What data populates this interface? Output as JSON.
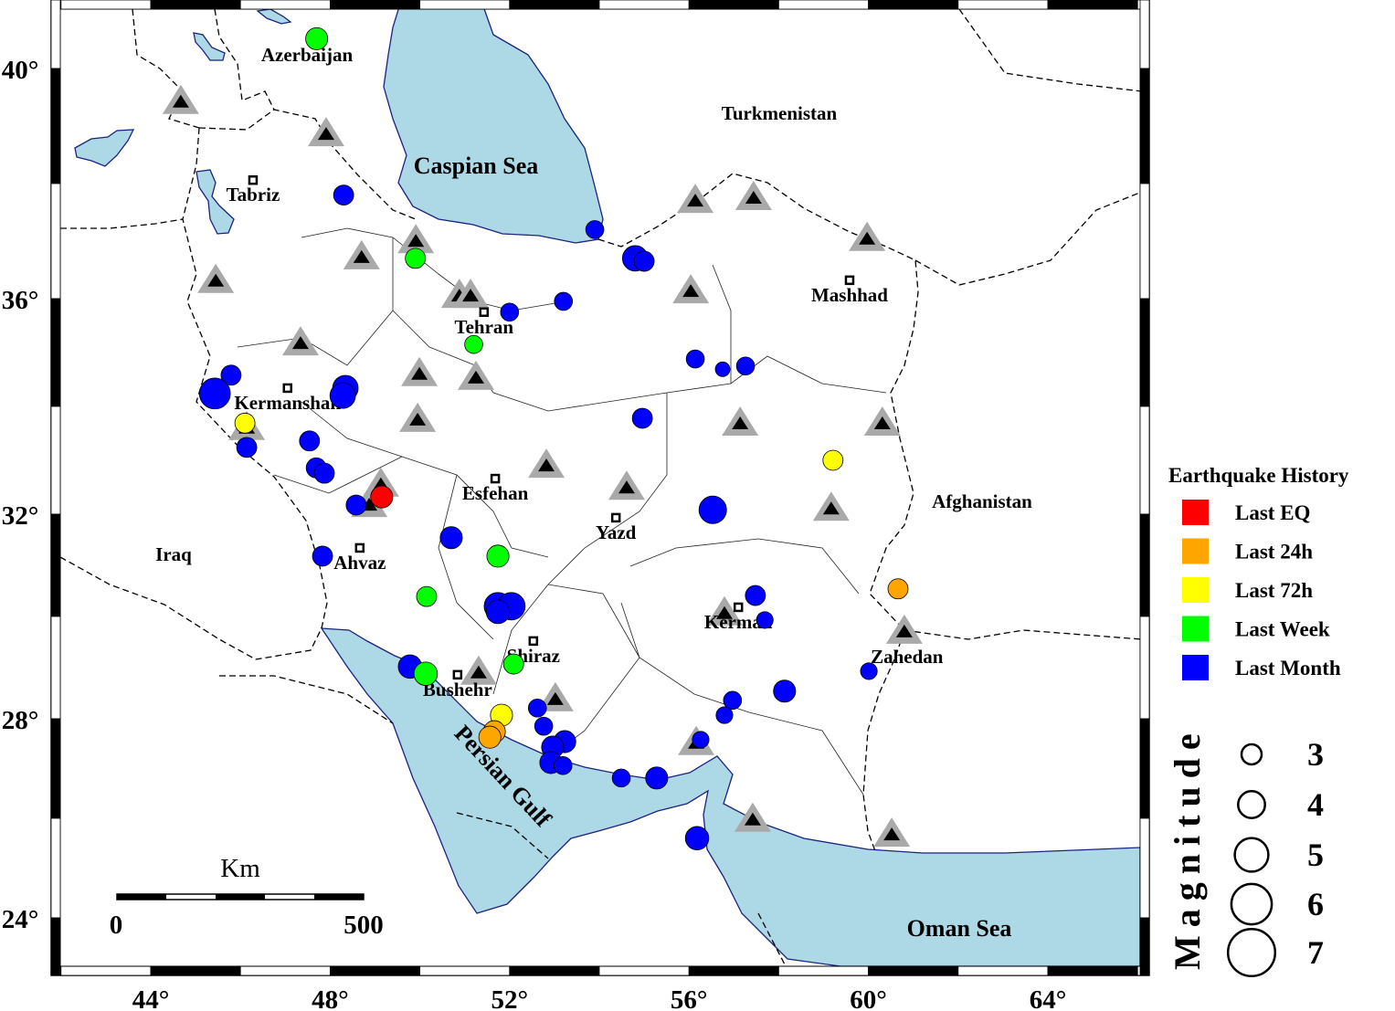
{
  "map": {
    "seas": {
      "caspian": "Caspian Sea",
      "persian_gulf": "Persian Gulf",
      "oman": "Oman Sea"
    },
    "countries": {
      "azerbaijan": "Azerbaijan",
      "turkmenistan": "Turkmenistan",
      "afghanistan": "Afghanistan",
      "iraq": "Iraq"
    },
    "lon_ticks": [
      {
        "value": 44,
        "label": "44°"
      },
      {
        "value": 48,
        "label": "48°"
      },
      {
        "value": 52,
        "label": "52°"
      },
      {
        "value": 56,
        "label": "56°"
      },
      {
        "value": 60,
        "label": "60°"
      },
      {
        "value": 64,
        "label": "64°"
      }
    ],
    "lat_ticks": [
      {
        "value": 40,
        "label": "40°"
      },
      {
        "value": 36,
        "label": "36°"
      },
      {
        "value": 32,
        "label": "32°"
      },
      {
        "value": 28,
        "label": "28°"
      },
      {
        "value": 24,
        "label": "24°"
      }
    ],
    "scale_bar": {
      "unit": "Km",
      "start": "0",
      "end": "500"
    },
    "cities": [
      {
        "name": "Tabriz",
        "lon": 46.28,
        "lat": 38.06,
        "marker": true
      },
      {
        "name": "Tehran",
        "lon": 51.43,
        "lat": 35.75,
        "marker": true
      },
      {
        "name": "Mashhad",
        "lon": 59.58,
        "lat": 36.32,
        "marker": true
      },
      {
        "name": "Kermanshah",
        "lon": 47.05,
        "lat": 34.34,
        "marker": true
      },
      {
        "name": "Esfehan",
        "lon": 51.68,
        "lat": 32.66,
        "marker": true
      },
      {
        "name": "Yazd",
        "lon": 54.37,
        "lat": 31.93,
        "marker": true
      },
      {
        "name": "Ahvaz",
        "lon": 48.66,
        "lat": 31.34,
        "marker": true
      },
      {
        "name": "Kerman",
        "lon": 57.1,
        "lat": 30.18,
        "marker": true
      },
      {
        "name": "Shiraz",
        "lon": 52.53,
        "lat": 29.52,
        "marker": true
      },
      {
        "name": "Bushehr",
        "lon": 50.84,
        "lat": 28.86,
        "marker": true
      },
      {
        "name": "Zahedan",
        "lon": 60.86,
        "lat": 29.5,
        "marker": false
      }
    ],
    "stations": [
      [
        44.67,
        39.4
      ],
      [
        47.91,
        38.84
      ],
      [
        56.14,
        37.68
      ],
      [
        57.44,
        37.73
      ],
      [
        49.91,
        36.98
      ],
      [
        48.7,
        36.7
      ],
      [
        59.97,
        37.02
      ],
      [
        45.45,
        36.29
      ],
      [
        56.04,
        36.11
      ],
      [
        50.88,
        36.03
      ],
      [
        51.13,
        36.03
      ],
      [
        47.34,
        35.15
      ],
      [
        49.99,
        34.58
      ],
      [
        51.25,
        34.51
      ],
      [
        49.95,
        33.73
      ],
      [
        57.14,
        33.66
      ],
      [
        60.31,
        33.66
      ],
      [
        46.14,
        33.58
      ],
      [
        52.82,
        32.88
      ],
      [
        54.61,
        32.47
      ],
      [
        59.17,
        32.08
      ],
      [
        49.13,
        32.53
      ],
      [
        48.87,
        32.15
      ],
      [
        56.79,
        30.04
      ],
      [
        60.8,
        29.68
      ],
      [
        51.31,
        28.88
      ],
      [
        53.02,
        28.36
      ],
      [
        56.16,
        27.49
      ],
      [
        57.42,
        25.95
      ],
      [
        60.52,
        25.65
      ]
    ],
    "events": [
      {
        "lon": 47.7,
        "lat": 40.5,
        "mag": 3.3,
        "period": "week"
      },
      {
        "lon": 48.3,
        "lat": 37.8,
        "mag": 3.0,
        "period": "month"
      },
      {
        "lon": 53.9,
        "lat": 37.2,
        "mag": 2.7,
        "period": "month"
      },
      {
        "lon": 54.8,
        "lat": 36.7,
        "mag": 3.8,
        "period": "month"
      },
      {
        "lon": 55.0,
        "lat": 36.65,
        "mag": 3.0,
        "period": "month"
      },
      {
        "lon": 49.9,
        "lat": 36.7,
        "mag": 3.0,
        "period": "week"
      },
      {
        "lon": 53.2,
        "lat": 35.95,
        "mag": 2.7,
        "period": "month"
      },
      {
        "lon": 52.0,
        "lat": 35.75,
        "mag": 2.7,
        "period": "month"
      },
      {
        "lon": 51.2,
        "lat": 35.15,
        "mag": 2.7,
        "period": "week"
      },
      {
        "lon": 56.14,
        "lat": 34.88,
        "mag": 2.7,
        "period": "month"
      },
      {
        "lon": 56.75,
        "lat": 34.69,
        "mag": 2.2,
        "period": "month"
      },
      {
        "lon": 57.26,
        "lat": 34.75,
        "mag": 2.7,
        "period": "month"
      },
      {
        "lon": 45.79,
        "lat": 34.58,
        "mag": 3.0,
        "period": "month"
      },
      {
        "lon": 45.43,
        "lat": 34.24,
        "mag": 4.6,
        "period": "month"
      },
      {
        "lon": 48.34,
        "lat": 34.34,
        "mag": 3.8,
        "period": "month"
      },
      {
        "lon": 48.28,
        "lat": 34.2,
        "mag": 3.8,
        "period": "month"
      },
      {
        "lon": 46.1,
        "lat": 33.69,
        "mag": 3.0,
        "period": "72h"
      },
      {
        "lon": 46.14,
        "lat": 33.24,
        "mag": 3.0,
        "period": "month"
      },
      {
        "lon": 47.54,
        "lat": 33.36,
        "mag": 3.0,
        "period": "month"
      },
      {
        "lon": 47.69,
        "lat": 32.86,
        "mag": 3.0,
        "period": "month"
      },
      {
        "lon": 47.87,
        "lat": 32.76,
        "mag": 3.0,
        "period": "month"
      },
      {
        "lon": 54.96,
        "lat": 33.78,
        "mag": 3.0,
        "period": "month"
      },
      {
        "lon": 59.21,
        "lat": 33.0,
        "mag": 3.0,
        "period": "72h"
      },
      {
        "lon": 48.58,
        "lat": 32.17,
        "mag": 3.0,
        "period": "month"
      },
      {
        "lon": 56.53,
        "lat": 32.08,
        "mag": 4.1,
        "period": "month"
      },
      {
        "lon": 50.7,
        "lat": 31.54,
        "mag": 3.3,
        "period": "month"
      },
      {
        "lon": 47.83,
        "lat": 31.18,
        "mag": 3.0,
        "period": "month"
      },
      {
        "lon": 51.74,
        "lat": 31.18,
        "mag": 3.3,
        "period": "week"
      },
      {
        "lon": 60.66,
        "lat": 30.54,
        "mag": 3.0,
        "period": "24h"
      },
      {
        "lon": 50.15,
        "lat": 30.39,
        "mag": 3.0,
        "period": "week"
      },
      {
        "lon": 57.48,
        "lat": 30.41,
        "mag": 3.0,
        "period": "month"
      },
      {
        "lon": 57.69,
        "lat": 29.93,
        "mag": 2.5,
        "period": "month"
      },
      {
        "lon": 51.74,
        "lat": 30.2,
        "mag": 4.1,
        "period": "month"
      },
      {
        "lon": 52.04,
        "lat": 30.2,
        "mag": 4.1,
        "period": "month"
      },
      {
        "lon": 51.74,
        "lat": 30.09,
        "mag": 3.5,
        "period": "month"
      },
      {
        "lon": 49.78,
        "lat": 29.02,
        "mag": 3.5,
        "period": "month"
      },
      {
        "lon": 50.13,
        "lat": 28.88,
        "mag": 3.5,
        "period": "week"
      },
      {
        "lon": 52.09,
        "lat": 29.07,
        "mag": 3.0,
        "period": "week"
      },
      {
        "lon": 60.01,
        "lat": 28.93,
        "mag": 2.5,
        "period": "month"
      },
      {
        "lon": 58.13,
        "lat": 28.54,
        "mag": 3.3,
        "period": "month"
      },
      {
        "lon": 56.97,
        "lat": 28.36,
        "mag": 2.7,
        "period": "month"
      },
      {
        "lon": 56.79,
        "lat": 28.07,
        "mag": 2.5,
        "period": "month"
      },
      {
        "lon": 51.82,
        "lat": 28.07,
        "mag": 3.3,
        "period": "72h"
      },
      {
        "lon": 52.62,
        "lat": 28.21,
        "mag": 2.7,
        "period": "month"
      },
      {
        "lon": 52.76,
        "lat": 27.85,
        "mag": 2.7,
        "period": "month"
      },
      {
        "lon": 53.23,
        "lat": 27.54,
        "mag": 3.3,
        "period": "month"
      },
      {
        "lon": 52.96,
        "lat": 27.43,
        "mag": 3.3,
        "period": "month"
      },
      {
        "lon": 52.92,
        "lat": 27.12,
        "mag": 3.3,
        "period": "month"
      },
      {
        "lon": 53.19,
        "lat": 27.06,
        "mag": 2.7,
        "period": "month"
      },
      {
        "lon": 56.26,
        "lat": 27.58,
        "mag": 2.5,
        "period": "month"
      },
      {
        "lon": 54.49,
        "lat": 26.81,
        "mag": 2.7,
        "period": "month"
      },
      {
        "lon": 55.28,
        "lat": 26.81,
        "mag": 3.3,
        "period": "month"
      },
      {
        "lon": 56.18,
        "lat": 25.6,
        "mag": 3.5,
        "period": "month"
      },
      {
        "lon": 51.66,
        "lat": 27.74,
        "mag": 3.3,
        "period": "24h"
      },
      {
        "lon": 51.56,
        "lat": 27.63,
        "mag": 3.3,
        "period": "24h"
      },
      {
        "lon": 49.15,
        "lat": 32.32,
        "mag": 3.3,
        "period": "last"
      }
    ]
  },
  "legend": {
    "title": "Earthquake History",
    "items": [
      {
        "key": "last",
        "label": "Last EQ",
        "color": "#ff0000"
      },
      {
        "key": "24h",
        "label": "Last 24h",
        "color": "#ffa500"
      },
      {
        "key": "72h",
        "label": "Last 72h",
        "color": "#ffff00"
      },
      {
        "key": "week",
        "label": "Last Week",
        "color": "#00ff00"
      },
      {
        "key": "month",
        "label": "Last Month",
        "color": "#0000ff"
      }
    ],
    "magnitude_title": "Magnitude",
    "magnitudes": [
      {
        "value": 3,
        "label": "3"
      },
      {
        "value": 4,
        "label": "4"
      },
      {
        "value": 5,
        "label": "5"
      },
      {
        "value": 6,
        "label": "6"
      },
      {
        "value": 7,
        "label": "7"
      }
    ]
  },
  "colors": {
    "water": "#add8e6",
    "station_outer": "#a9a9a9",
    "station_inner": "#000000"
  }
}
